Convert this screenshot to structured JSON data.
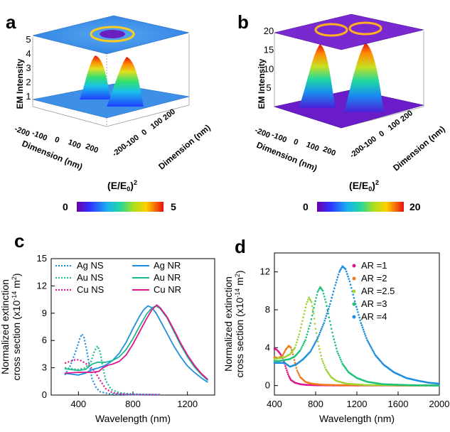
{
  "panels": {
    "a": {
      "letter": "a",
      "zlabel": "EM Intensity",
      "xlabel": "Dimension (nm)",
      "ylabel": "Dimension (nm)",
      "zticks": [
        "1",
        "2",
        "3",
        "4",
        "5"
      ],
      "xticks": [
        "-200",
        "-100",
        "0",
        "100",
        "200"
      ],
      "yticks": [
        "200",
        "100",
        "0",
        "-100",
        "-200"
      ],
      "colorbar": {
        "label_base": "(E/E",
        "label_sub": "0",
        "label_close": ")",
        "label_sup": "2",
        "min": "0",
        "max": "5"
      }
    },
    "b": {
      "letter": "b",
      "zlabel": "EM Intensity",
      "xlabel": "Dimension (nm)",
      "ylabel": "Dimension (nm)",
      "zticks": [
        "5",
        "10",
        "15",
        "20"
      ],
      "xticks": [
        "-200",
        "-100",
        "0",
        "100",
        "200"
      ],
      "yticks": [
        "200",
        "100",
        "0",
        "-100",
        "-200"
      ],
      "colorbar": {
        "label_base": "(E/E",
        "label_sub": "0",
        "label_close": ")",
        "label_sup": "2",
        "min": "0",
        "max": "20"
      }
    }
  },
  "chart_data": [
    {
      "panel": "c",
      "type": "line",
      "xlabel": "Wavelength (nm)",
      "ylabel_line1": "Normalized extinction",
      "ylabel_line2_base": "cross section (x10",
      "ylabel_line2_sup": "-14",
      "ylabel_line2_mid": " m",
      "ylabel_line2_sup2": "2",
      "ylabel_line2_end": ")",
      "xlim": [
        200,
        1400
      ],
      "ylim": [
        0,
        15
      ],
      "xticks": [
        400,
        800,
        1200
      ],
      "yticks": [
        0,
        3,
        6,
        9,
        12,
        15
      ],
      "legend_placement": "top",
      "series": [
        {
          "name": "Ag NS",
          "color": "#1f8fe0",
          "style": "dotted",
          "points": [
            [
              300,
              2.2
            ],
            [
              340,
              3.2
            ],
            [
              380,
              4.8
            ],
            [
              410,
              6.2
            ],
            [
              425,
              6.7
            ],
            [
              440,
              6.4
            ],
            [
              460,
              5.0
            ],
            [
              480,
              3.3
            ],
            [
              500,
              1.8
            ],
            [
              530,
              0.8
            ],
            [
              560,
              0.35
            ],
            [
              620,
              0.15
            ],
            [
              700,
              0.08
            ],
            [
              800,
              0.04
            ],
            [
              1000,
              0.02
            ]
          ]
        },
        {
          "name": "Au NS",
          "color": "#19b991",
          "style": "dotted",
          "points": [
            [
              300,
              3.0
            ],
            [
              350,
              2.9
            ],
            [
              400,
              2.8
            ],
            [
              450,
              3.0
            ],
            [
              490,
              3.6
            ],
            [
              520,
              4.9
            ],
            [
              540,
              5.4
            ],
            [
              560,
              4.7
            ],
            [
              580,
              3.0
            ],
            [
              600,
              1.6
            ],
            [
              640,
              0.6
            ],
            [
              700,
              0.25
            ],
            [
              800,
              0.1
            ],
            [
              1000,
              0.05
            ]
          ]
        },
        {
          "name": "Cu NS",
          "color": "#e0158a",
          "style": "dotted",
          "points": [
            [
              300,
              3.5
            ],
            [
              340,
              3.7
            ],
            [
              380,
              3.9
            ],
            [
              410,
              3.85
            ],
            [
              440,
              3.6
            ],
            [
              480,
              3.2
            ],
            [
              520,
              2.6
            ],
            [
              560,
              1.6
            ],
            [
              600,
              0.7
            ],
            [
              650,
              0.25
            ],
            [
              720,
              0.1
            ],
            [
              800,
              0.05
            ],
            [
              1000,
              0.02
            ]
          ]
        },
        {
          "name": "Ag NR",
          "color": "#1f8fe0",
          "style": "solid",
          "points": [
            [
              300,
              2.4
            ],
            [
              350,
              2.3
            ],
            [
              400,
              2.2
            ],
            [
              450,
              2.4
            ],
            [
              500,
              2.8
            ],
            [
              550,
              3.0
            ],
            [
              600,
              3.3
            ],
            [
              650,
              3.8
            ],
            [
              700,
              4.6
            ],
            [
              750,
              5.8
            ],
            [
              800,
              7.3
            ],
            [
              850,
              8.7
            ],
            [
              880,
              9.4
            ],
            [
              910,
              9.8
            ],
            [
              940,
              9.6
            ],
            [
              970,
              9.0
            ],
            [
              1000,
              8.2
            ],
            [
              1050,
              6.8
            ],
            [
              1100,
              5.4
            ],
            [
              1150,
              4.2
            ],
            [
              1200,
              3.2
            ],
            [
              1250,
              2.5
            ],
            [
              1300,
              1.9
            ],
            [
              1350,
              1.4
            ]
          ]
        },
        {
          "name": "Au NR",
          "color": "#19b991",
          "style": "solid",
          "points": [
            [
              300,
              2.9
            ],
            [
              350,
              2.8
            ],
            [
              400,
              2.7
            ],
            [
              450,
              2.8
            ],
            [
              500,
              3.4
            ],
            [
              540,
              3.6
            ],
            [
              600,
              3.6
            ],
            [
              650,
              3.8
            ],
            [
              700,
              4.2
            ],
            [
              750,
              5.0
            ],
            [
              800,
              6.2
            ],
            [
              850,
              7.6
            ],
            [
              900,
              8.9
            ],
            [
              940,
              9.6
            ],
            [
              970,
              9.8
            ],
            [
              1000,
              9.5
            ],
            [
              1050,
              8.5
            ],
            [
              1100,
              7.0
            ],
            [
              1150,
              5.5
            ],
            [
              1200,
              4.2
            ],
            [
              1250,
              3.1
            ],
            [
              1300,
              2.3
            ],
            [
              1350,
              1.6
            ]
          ]
        },
        {
          "name": "Cu NR",
          "color": "#e0158a",
          "style": "solid",
          "points": [
            [
              300,
              2.4
            ],
            [
              350,
              2.45
            ],
            [
              400,
              2.5
            ],
            [
              450,
              2.5
            ],
            [
              500,
              2.5
            ],
            [
              550,
              2.6
            ],
            [
              580,
              3.0
            ],
            [
              620,
              3.3
            ],
            [
              650,
              3.4
            ],
            [
              700,
              3.7
            ],
            [
              750,
              4.4
            ],
            [
              800,
              5.6
            ],
            [
              850,
              7.0
            ],
            [
              900,
              8.4
            ],
            [
              940,
              9.4
            ],
            [
              975,
              9.9
            ],
            [
              1000,
              9.6
            ],
            [
              1050,
              8.6
            ],
            [
              1100,
              7.2
            ],
            [
              1150,
              5.7
            ],
            [
              1200,
              4.4
            ],
            [
              1250,
              3.3
            ],
            [
              1300,
              2.4
            ],
            [
              1350,
              1.7
            ]
          ]
        }
      ]
    },
    {
      "panel": "d",
      "type": "scatter",
      "xlabel": "Wavelength (nm)",
      "ylabel_line1": "Normalized extinction",
      "ylabel_line2_base": "cross section (x10",
      "ylabel_line2_sup": "-14",
      "ylabel_line2_mid": " m",
      "ylabel_line2_sup2": "2",
      "ylabel_line2_end": ")",
      "xlim": [
        400,
        2000
      ],
      "ylim": [
        -1,
        14
      ],
      "xticks": [
        400,
        800,
        1200,
        1600,
        2000
      ],
      "yticks": [
        0,
        4,
        8,
        12
      ],
      "legend_placement": "top-right",
      "series": [
        {
          "name": "AR =1",
          "color": "#e0158a",
          "points": [
            [
              400,
              3.9
            ],
            [
              420,
              3.8
            ],
            [
              440,
              3.6
            ],
            [
              460,
              3.3
            ],
            [
              480,
              2.9
            ],
            [
              500,
              2.3
            ],
            [
              520,
              1.6
            ],
            [
              540,
              1.0
            ],
            [
              560,
              0.6
            ],
            [
              600,
              0.3
            ],
            [
              650,
              0.15
            ],
            [
              700,
              0.08
            ],
            [
              800,
              0.04
            ],
            [
              1000,
              0.02
            ],
            [
              2000,
              0.0
            ]
          ]
        },
        {
          "name": "AR =2",
          "color": "#f07a1a",
          "points": [
            [
              400,
              3.0
            ],
            [
              440,
              2.9
            ],
            [
              480,
              3.2
            ],
            [
              510,
              3.8
            ],
            [
              540,
              4.2
            ],
            [
              560,
              4.0
            ],
            [
              580,
              3.3
            ],
            [
              600,
              2.4
            ],
            [
              620,
              1.6
            ],
            [
              650,
              0.9
            ],
            [
              700,
              0.4
            ],
            [
              760,
              0.2
            ],
            [
              850,
              0.1
            ],
            [
              1000,
              0.05
            ],
            [
              2000,
              0.0
            ]
          ]
        },
        {
          "name": "AR =2.5",
          "color": "#9ed534",
          "points": [
            [
              400,
              2.8
            ],
            [
              450,
              2.9
            ],
            [
              500,
              3.0
            ],
            [
              550,
              3.3
            ],
            [
              600,
              4.0
            ],
            [
              640,
              5.4
            ],
            [
              680,
              7.2
            ],
            [
              710,
              8.6
            ],
            [
              735,
              9.3
            ],
            [
              760,
              8.8
            ],
            [
              780,
              7.6
            ],
            [
              800,
              6.0
            ],
            [
              830,
              4.2
            ],
            [
              860,
              2.8
            ],
            [
              900,
              1.7
            ],
            [
              950,
              0.9
            ],
            [
              1000,
              0.5
            ],
            [
              1100,
              0.2
            ],
            [
              1300,
              0.05
            ],
            [
              2000,
              0.0
            ]
          ]
        },
        {
          "name": "AR =3",
          "color": "#1fc27a",
          "points": [
            [
              400,
              2.6
            ],
            [
              450,
              2.6
            ],
            [
              500,
              2.7
            ],
            [
              550,
              2.8
            ],
            [
              600,
              3.1
            ],
            [
              650,
              3.7
            ],
            [
              700,
              4.8
            ],
            [
              750,
              6.6
            ],
            [
              790,
              8.6
            ],
            [
              820,
              9.9
            ],
            [
              845,
              10.4
            ],
            [
              870,
              10.0
            ],
            [
              900,
              8.8
            ],
            [
              930,
              7.2
            ],
            [
              970,
              5.2
            ],
            [
              1010,
              3.6
            ],
            [
              1060,
              2.3
            ],
            [
              1120,
              1.4
            ],
            [
              1200,
              0.8
            ],
            [
              1300,
              0.4
            ],
            [
              1450,
              0.15
            ],
            [
              1700,
              0.05
            ],
            [
              2000,
              0.0
            ]
          ]
        },
        {
          "name": "AR =4",
          "color": "#1d8fdf",
          "points": [
            [
              400,
              2.4
            ],
            [
              450,
              2.4
            ],
            [
              500,
              2.4
            ],
            [
              550,
              2.0
            ],
            [
              580,
              2.1
            ],
            [
              620,
              2.3
            ],
            [
              680,
              2.8
            ],
            [
              750,
              3.6
            ],
            [
              820,
              5.0
            ],
            [
              880,
              6.6
            ],
            [
              940,
              8.6
            ],
            [
              990,
              10.6
            ],
            [
              1030,
              12.0
            ],
            [
              1060,
              12.6
            ],
            [
              1090,
              12.3
            ],
            [
              1130,
              11.0
            ],
            [
              1180,
              8.9
            ],
            [
              1240,
              6.6
            ],
            [
              1300,
              4.8
            ],
            [
              1380,
              3.2
            ],
            [
              1460,
              2.2
            ],
            [
              1560,
              1.4
            ],
            [
              1680,
              0.8
            ],
            [
              1800,
              0.5
            ],
            [
              1900,
              0.3
            ],
            [
              2000,
              0.2
            ]
          ]
        }
      ]
    }
  ]
}
